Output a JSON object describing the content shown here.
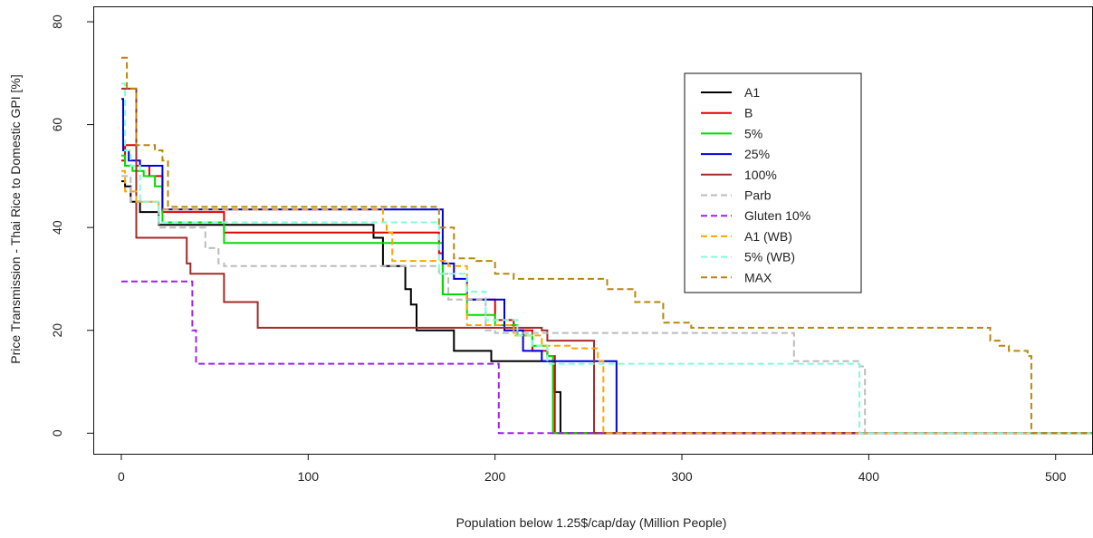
{
  "chart_data": {
    "type": "line",
    "title": "",
    "xlabel": "Population below 1.25$/cap/day (Million People)",
    "ylabel": "Price Transmission - Thai Rice to Domestic GPI [%]",
    "xlim": [
      -15,
      520
    ],
    "ylim": [
      -4,
      83
    ],
    "x_ticks": [
      0,
      100,
      200,
      300,
      400,
      500
    ],
    "y_ticks": [
      0,
      20,
      40,
      60,
      80
    ],
    "grid": false,
    "legend_position": "top-right",
    "series": [
      {
        "name": "A1",
        "color": "#000000",
        "style": "solid",
        "points": [
          [
            0,
            49
          ],
          [
            2,
            49
          ],
          [
            2,
            48
          ],
          [
            5,
            48
          ],
          [
            5,
            45
          ],
          [
            10,
            45
          ],
          [
            10,
            43
          ],
          [
            20,
            43
          ],
          [
            20,
            40.5
          ],
          [
            135,
            40.5
          ],
          [
            135,
            38
          ],
          [
            140,
            38
          ],
          [
            140,
            32.5
          ],
          [
            152,
            32.5
          ],
          [
            152,
            28
          ],
          [
            155,
            28
          ],
          [
            155,
            25
          ],
          [
            158,
            25
          ],
          [
            158,
            20
          ],
          [
            178,
            20
          ],
          [
            178,
            16
          ],
          [
            198,
            16
          ],
          [
            198,
            14
          ],
          [
            232,
            14
          ],
          [
            232,
            8
          ],
          [
            235,
            8
          ],
          [
            235,
            0
          ],
          [
            520,
            0
          ]
        ]
      },
      {
        "name": "B",
        "color": "#e00000",
        "style": "solid",
        "points": [
          [
            0,
            53
          ],
          [
            2,
            53
          ],
          [
            2,
            56
          ],
          [
            8,
            56
          ],
          [
            8,
            52
          ],
          [
            15,
            52
          ],
          [
            15,
            50
          ],
          [
            22,
            50
          ],
          [
            22,
            43
          ],
          [
            55,
            43
          ],
          [
            55,
            39
          ],
          [
            170,
            39
          ],
          [
            170,
            35
          ],
          [
            172,
            35
          ],
          [
            172,
            27
          ],
          [
            185,
            27
          ],
          [
            185,
            26
          ],
          [
            200,
            26
          ],
          [
            200,
            22
          ],
          [
            210,
            22
          ],
          [
            210,
            20
          ],
          [
            220,
            20
          ],
          [
            220,
            16
          ],
          [
            228,
            16
          ],
          [
            228,
            15
          ],
          [
            232,
            15
          ],
          [
            232,
            0
          ],
          [
            520,
            0
          ]
        ]
      },
      {
        "name": "5%",
        "color": "#00dd00",
        "style": "solid",
        "points": [
          [
            0,
            54
          ],
          [
            2,
            54
          ],
          [
            2,
            52
          ],
          [
            6,
            52
          ],
          [
            6,
            51
          ],
          [
            12,
            51
          ],
          [
            12,
            50
          ],
          [
            18,
            50
          ],
          [
            18,
            48
          ],
          [
            22,
            48
          ],
          [
            22,
            41
          ],
          [
            55,
            41
          ],
          [
            55,
            37
          ],
          [
            172,
            37
          ],
          [
            172,
            27
          ],
          [
            185,
            27
          ],
          [
            185,
            23
          ],
          [
            200,
            23
          ],
          [
            200,
            21
          ],
          [
            212,
            21
          ],
          [
            212,
            19
          ],
          [
            220,
            19
          ],
          [
            220,
            17
          ],
          [
            228,
            17
          ],
          [
            228,
            15
          ],
          [
            231,
            15
          ],
          [
            231,
            0
          ],
          [
            520,
            0
          ]
        ]
      },
      {
        "name": "25%",
        "color": "#0000dd",
        "style": "solid",
        "points": [
          [
            0,
            65
          ],
          [
            1,
            65
          ],
          [
            1,
            55
          ],
          [
            4,
            55
          ],
          [
            4,
            53
          ],
          [
            10,
            53
          ],
          [
            10,
            52
          ],
          [
            15,
            52
          ],
          [
            15,
            52
          ],
          [
            22,
            52
          ],
          [
            22,
            43.5
          ],
          [
            172,
            43.5
          ],
          [
            172,
            33
          ],
          [
            178,
            33
          ],
          [
            178,
            30
          ],
          [
            185,
            30
          ],
          [
            185,
            26
          ],
          [
            205,
            26
          ],
          [
            205,
            20
          ],
          [
            215,
            20
          ],
          [
            215,
            16
          ],
          [
            225,
            16
          ],
          [
            225,
            14
          ],
          [
            265,
            14
          ],
          [
            265,
            0
          ],
          [
            520,
            0
          ]
        ]
      },
      {
        "name": "100%",
        "color": "#a52a2a",
        "style": "solid",
        "points": [
          [
            0,
            67
          ],
          [
            8,
            67
          ],
          [
            8,
            38
          ],
          [
            35,
            38
          ],
          [
            35,
            33
          ],
          [
            37,
            33
          ],
          [
            37,
            31
          ],
          [
            55,
            31
          ],
          [
            55,
            25.5
          ],
          [
            73,
            25.5
          ],
          [
            73,
            20.5
          ],
          [
            225,
            20.5
          ],
          [
            225,
            20
          ],
          [
            228,
            20
          ],
          [
            228,
            18
          ],
          [
            253,
            18
          ],
          [
            253,
            0
          ],
          [
            520,
            0
          ]
        ]
      },
      {
        "name": "Parb",
        "color": "#bbbbbb",
        "style": "dashed",
        "points": [
          [
            0,
            50
          ],
          [
            5,
            50
          ],
          [
            5,
            45
          ],
          [
            20,
            45
          ],
          [
            20,
            40
          ],
          [
            45,
            40
          ],
          [
            45,
            36
          ],
          [
            52,
            36
          ],
          [
            52,
            33
          ],
          [
            55,
            33
          ],
          [
            55,
            32.5
          ],
          [
            170,
            32.5
          ],
          [
            170,
            31
          ],
          [
            175,
            31
          ],
          [
            175,
            26
          ],
          [
            195,
            26
          ],
          [
            195,
            20
          ],
          [
            200,
            20
          ],
          [
            200,
            19.5
          ],
          [
            360,
            19.5
          ],
          [
            360,
            14
          ],
          [
            395,
            14
          ],
          [
            395,
            13
          ],
          [
            398,
            13
          ],
          [
            398,
            0
          ],
          [
            520,
            0
          ]
        ]
      },
      {
        "name": "Gluten 10%",
        "color": "#a020f0",
        "style": "dashed",
        "points": [
          [
            0,
            29.5
          ],
          [
            38,
            29.5
          ],
          [
            38,
            20
          ],
          [
            40,
            20
          ],
          [
            40,
            13.5
          ],
          [
            202,
            13.5
          ],
          [
            202,
            0
          ],
          [
            520,
            0
          ]
        ]
      },
      {
        "name": "A1 (WB)",
        "color": "#ffa500",
        "style": "dashed",
        "points": [
          [
            0,
            51
          ],
          [
            2,
            51
          ],
          [
            2,
            47
          ],
          [
            8,
            47
          ],
          [
            8,
            45
          ],
          [
            20,
            45
          ],
          [
            20,
            43.5
          ],
          [
            140,
            43.5
          ],
          [
            140,
            41
          ],
          [
            142,
            41
          ],
          [
            142,
            39
          ],
          [
            145,
            39
          ],
          [
            145,
            33.5
          ],
          [
            175,
            33.5
          ],
          [
            175,
            32.5
          ],
          [
            185,
            32.5
          ],
          [
            185,
            21
          ],
          [
            210,
            21
          ],
          [
            210,
            19
          ],
          [
            225,
            19
          ],
          [
            225,
            17
          ],
          [
            240,
            17
          ],
          [
            240,
            16.5
          ],
          [
            255,
            16.5
          ],
          [
            255,
            14
          ],
          [
            258,
            14
          ],
          [
            258,
            0
          ],
          [
            520,
            0
          ]
        ]
      },
      {
        "name": "5% (WB)",
        "color": "#7fffd4",
        "style": "dashed",
        "points": [
          [
            0,
            68
          ],
          [
            2,
            68
          ],
          [
            2,
            55
          ],
          [
            5,
            55
          ],
          [
            5,
            52
          ],
          [
            10,
            52
          ],
          [
            10,
            45
          ],
          [
            20,
            45
          ],
          [
            20,
            41
          ],
          [
            170,
            41
          ],
          [
            170,
            31
          ],
          [
            185,
            31
          ],
          [
            185,
            27.5
          ],
          [
            195,
            27.5
          ],
          [
            195,
            22
          ],
          [
            212,
            22
          ],
          [
            212,
            19
          ],
          [
            220,
            19
          ],
          [
            220,
            17
          ],
          [
            228,
            17
          ],
          [
            228,
            13.5
          ],
          [
            395,
            13.5
          ],
          [
            395,
            0
          ],
          [
            520,
            0
          ]
        ]
      },
      {
        "name": "MAX",
        "color": "#b8860b",
        "style": "dashed",
        "points": [
          [
            0,
            73
          ],
          [
            3,
            73
          ],
          [
            3,
            67
          ],
          [
            8,
            67
          ],
          [
            8,
            56
          ],
          [
            18,
            56
          ],
          [
            18,
            55
          ],
          [
            22,
            55
          ],
          [
            22,
            53
          ],
          [
            25,
            53
          ],
          [
            25,
            44
          ],
          [
            170,
            44
          ],
          [
            170,
            40
          ],
          [
            178,
            40
          ],
          [
            178,
            34
          ],
          [
            190,
            34
          ],
          [
            190,
            33.5
          ],
          [
            200,
            33.5
          ],
          [
            200,
            31
          ],
          [
            210,
            31
          ],
          [
            210,
            30
          ],
          [
            260,
            30
          ],
          [
            260,
            28
          ],
          [
            275,
            28
          ],
          [
            275,
            25.5
          ],
          [
            290,
            25.5
          ],
          [
            290,
            21.5
          ],
          [
            305,
            21.5
          ],
          [
            305,
            20.5
          ],
          [
            465,
            20.5
          ],
          [
            465,
            18
          ],
          [
            470,
            18
          ],
          [
            470,
            17
          ],
          [
            475,
            17
          ],
          [
            475,
            16
          ],
          [
            485,
            16
          ],
          [
            485,
            15
          ],
          [
            487,
            15
          ],
          [
            487,
            0
          ],
          [
            520,
            0
          ]
        ]
      }
    ]
  }
}
